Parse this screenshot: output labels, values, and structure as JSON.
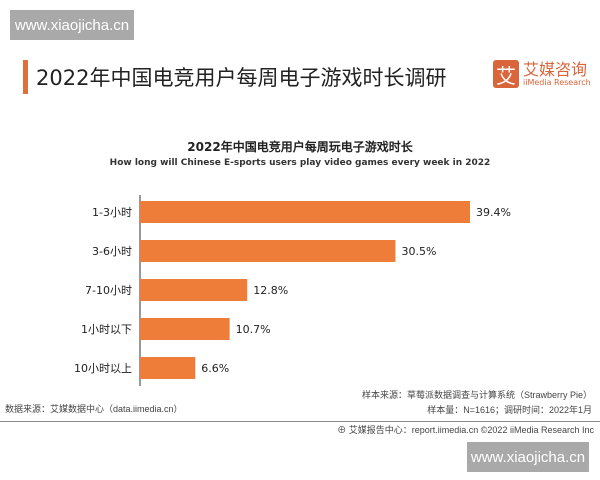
{
  "watermark": "www.xiaojicha.cn",
  "header": {
    "title": "2022年中国电竞用户每周电子游戏时长调研",
    "logo_mark": "艾",
    "logo_cn": "艾媒咨询",
    "logo_en": "iiMedia Research"
  },
  "colors": {
    "bar": "#ee7d3a",
    "accent": "#e0703a"
  },
  "chart_data": {
    "type": "bar",
    "orientation": "horizontal",
    "title": "2022年中国电竞用户每周玩电子游戏时长",
    "subtitle": "How long will Chinese E-sports users play video games every week in 2022",
    "categories": [
      "1-3小时",
      "3-6小时",
      "7-10小时",
      "1小时以下",
      "10小时以上"
    ],
    "values": [
      39.4,
      30.5,
      12.8,
      10.7,
      6.6
    ],
    "labels": [
      "39.4%",
      "30.5%",
      "12.8%",
      "10.7%",
      "6.6%"
    ],
    "unit": "%",
    "grid": false
  },
  "footer": {
    "source": "数据来源：艾媒数据中心（data.iimedia.cn）",
    "sample_source": "样本来源：草莓派数据调查与计算系统（Strawberry Pie）",
    "sample_size": "样本量：N=1616；调研时间：2022年1月",
    "report": "艾媒报告中心：report.iimedia.cn   ©2022  iiMedia Research  Inc"
  }
}
